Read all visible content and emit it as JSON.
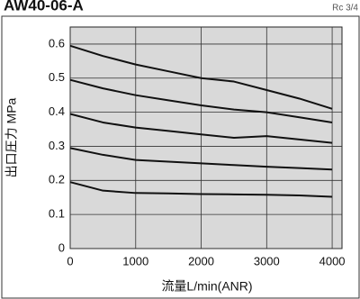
{
  "header": {
    "title": "AW40-06-A",
    "port": "Rc 3/4"
  },
  "chart_data": {
    "type": "line",
    "x_label": "流量L/min(ANR)",
    "y_label": "出口圧力 MPa",
    "x": [
      0,
      500,
      1000,
      1500,
      2000,
      2500,
      3000,
      3500,
      4000
    ],
    "series": [
      {
        "color": "#111111",
        "values": [
          0.595,
          0.565,
          0.54,
          0.52,
          0.5,
          0.49,
          0.465,
          0.44,
          0.41
        ]
      },
      {
        "color": "#111111",
        "values": [
          0.495,
          0.47,
          0.45,
          0.435,
          0.42,
          0.408,
          0.4,
          0.385,
          0.37
        ]
      },
      {
        "color": "#111111",
        "values": [
          0.395,
          0.37,
          0.355,
          0.345,
          0.335,
          0.325,
          0.33,
          0.32,
          0.31
        ]
      },
      {
        "color": "#111111",
        "values": [
          0.295,
          0.275,
          0.26,
          0.255,
          0.25,
          0.245,
          0.24,
          0.236,
          0.232
        ]
      },
      {
        "color": "#111111",
        "values": [
          0.195,
          0.17,
          0.163,
          0.162,
          0.16,
          0.159,
          0.158,
          0.156,
          0.152
        ]
      }
    ],
    "xlim": [
      0,
      4150
    ],
    "xticks": [
      0,
      1000,
      2000,
      3000,
      4000
    ],
    "ylim": [
      0,
      0.65
    ],
    "yticks": [
      0,
      0.1,
      0.2,
      0.3,
      0.4,
      0.5,
      0.6
    ],
    "grid": true
  }
}
